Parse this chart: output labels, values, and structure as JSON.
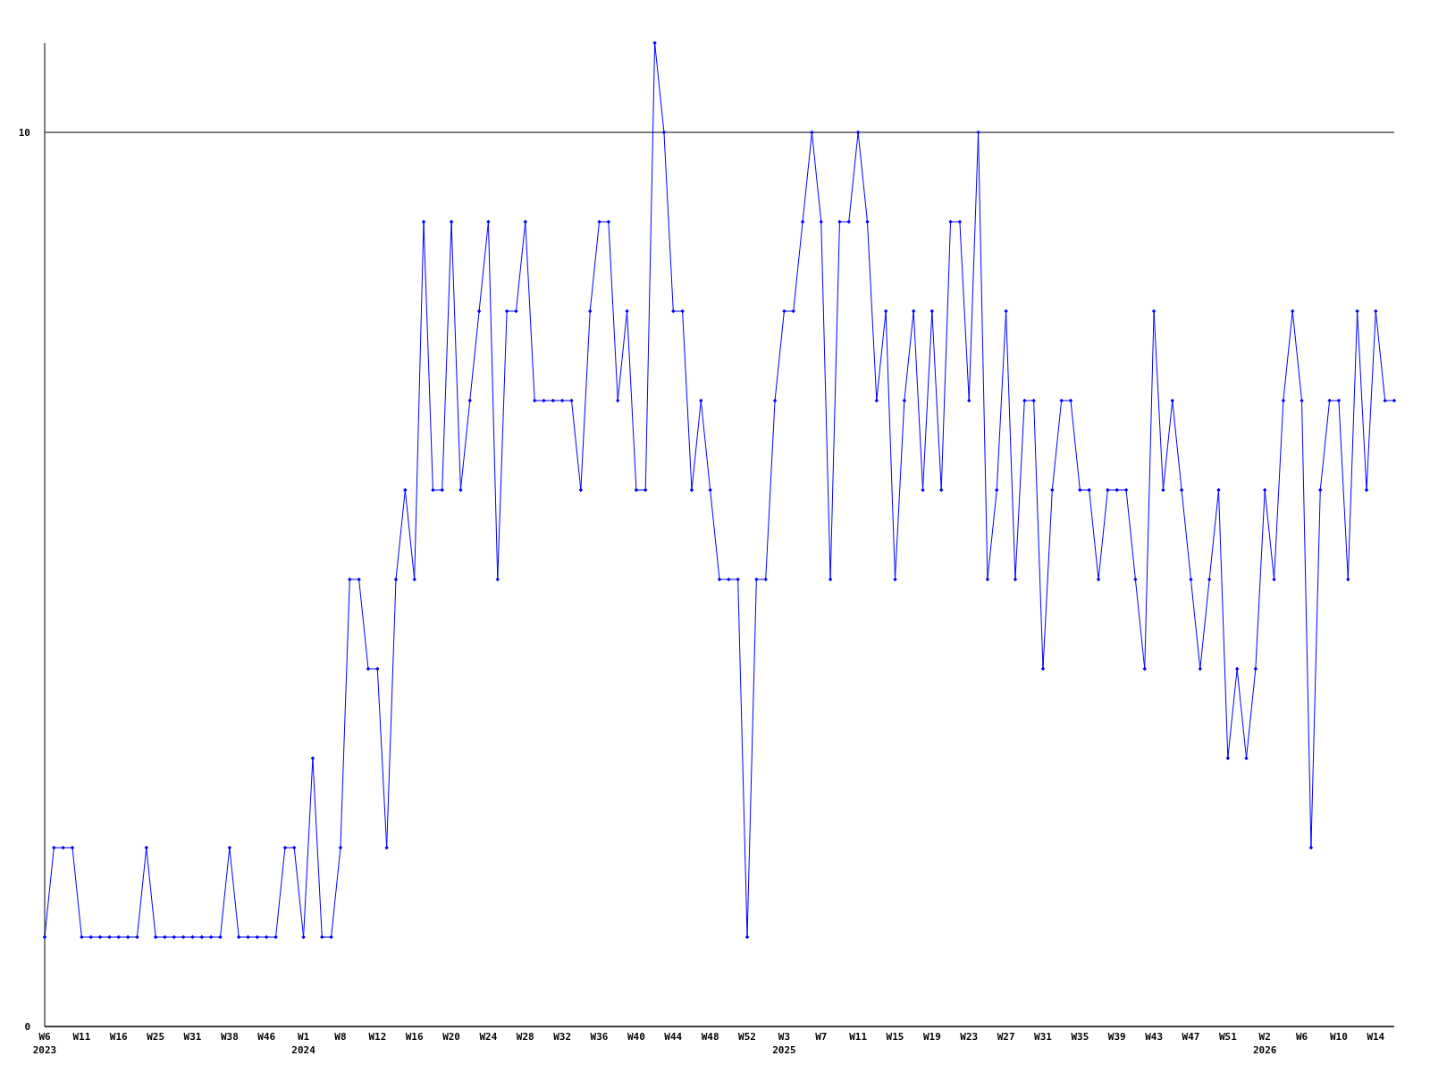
{
  "chart_data": {
    "type": "line",
    "categories": [
      "W6\n2023",
      null,
      null,
      null,
      "W11",
      null,
      null,
      null,
      "W16",
      null,
      null,
      null,
      "W25",
      null,
      null,
      null,
      "W31",
      null,
      null,
      null,
      "W38",
      null,
      null,
      null,
      "W46",
      null,
      null,
      null,
      "W1\n2024",
      null,
      null,
      null,
      "W8",
      null,
      null,
      null,
      "W12",
      null,
      null,
      null,
      "W16",
      null,
      null,
      null,
      "W20",
      null,
      null,
      null,
      "W24",
      null,
      null,
      null,
      "W28",
      null,
      null,
      null,
      "W32",
      null,
      null,
      null,
      "W36",
      null,
      null,
      null,
      "W40",
      null,
      null,
      null,
      "W44",
      null,
      null,
      null,
      "W48",
      null,
      null,
      null,
      "W52",
      null,
      null,
      null,
      "W3\n2025",
      null,
      null,
      null,
      "W7",
      null,
      null,
      null,
      "W11",
      null,
      null,
      null,
      "W15",
      null,
      null,
      null,
      "W19",
      null,
      null,
      null,
      "W23",
      null,
      null,
      null,
      "W27",
      null,
      null,
      null,
      "W31",
      null,
      null,
      null,
      "W35",
      null,
      null,
      null,
      "W39",
      null,
      null,
      null,
      "W43",
      null,
      null,
      null,
      "W47",
      null,
      null,
      null,
      "W51",
      null,
      null,
      null,
      "W2\n2026",
      null,
      null,
      null,
      "W6",
      null,
      null,
      null,
      "W10",
      null,
      null,
      null,
      "W14",
      null,
      null
    ],
    "series": [
      {
        "color": "#0000ff",
        "values": [
          1,
          2,
          2,
          2,
          1,
          1,
          1,
          1,
          1,
          1,
          1,
          2,
          1,
          1,
          1,
          1,
          1,
          1,
          1,
          1,
          2,
          1,
          1,
          1,
          1,
          1,
          2,
          2,
          1,
          3,
          1,
          1,
          2,
          5,
          5,
          4,
          4,
          2,
          5,
          6,
          5,
          9,
          6,
          6,
          9,
          6,
          7,
          8,
          9,
          5,
          8,
          8,
          9,
          7,
          7,
          7,
          7,
          7,
          6,
          8,
          9,
          9,
          7,
          8,
          6,
          6,
          11,
          10,
          8,
          8,
          6,
          7,
          6,
          5,
          5,
          5,
          1,
          5,
          5,
          7,
          8,
          8,
          9,
          10,
          9,
          5,
          9,
          9,
          10,
          9,
          7,
          8,
          5,
          7,
          8,
          6,
          8,
          6,
          9,
          9,
          7,
          10,
          5,
          6,
          8,
          5,
          7,
          7,
          4,
          6,
          7,
          7,
          6,
          6,
          5,
          6,
          6,
          6,
          5,
          4,
          8,
          6,
          7,
          6,
          5,
          4,
          5,
          6,
          3,
          4,
          3,
          4,
          6,
          5,
          7,
          8,
          7,
          2,
          6,
          7,
          7,
          5,
          8,
          6,
          8,
          7,
          7
        ]
      }
    ],
    "ylim": [
      0,
      11
    ],
    "yticks": [
      0,
      10
    ],
    "grid": "y",
    "marker": "diamond",
    "line_style": "solid"
  }
}
